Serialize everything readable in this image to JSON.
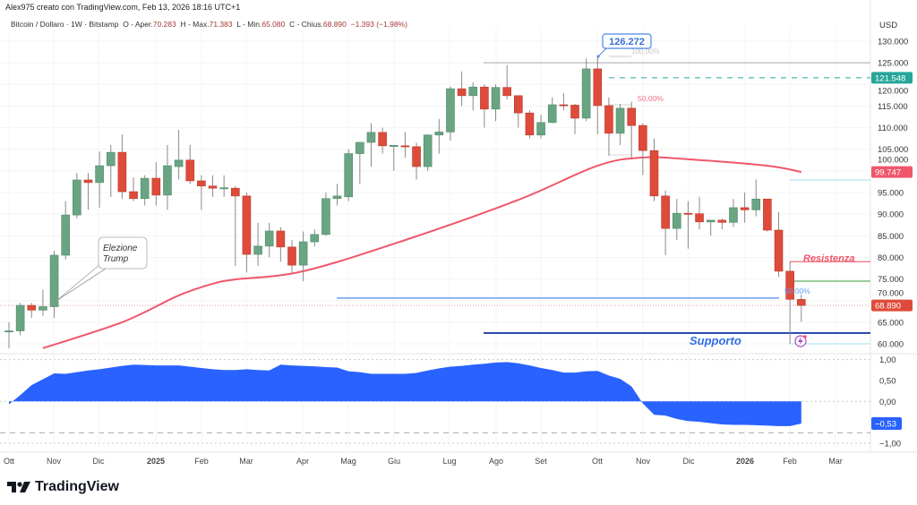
{
  "header": {
    "author_line": "Alex975 creato con TradingView.com, Feb 13, 2026 18:16 UTC+1",
    "symbol": "Bitcoin / Dollaro · 1W · Bitstamp",
    "open_label": "O - Aper.",
    "open": "70.283",
    "high_label": "H - Max.",
    "high": "71.383",
    "low_label": "L - Min.",
    "low": "65.080",
    "close_label": "C - Chius.",
    "close": "68.890",
    "change": "−1.393 (−1,98%)"
  },
  "price_axis": {
    "currency": "USD",
    "ticks": [
      "130.000",
      "125.000",
      "120.000",
      "115.000",
      "110.000",
      "105.000",
      "100.000",
      "95.000",
      "90.000",
      "85.000",
      "80.000",
      "75.000",
      "70.000",
      "65.000",
      "60.000"
    ],
    "badges": {
      "green_level": "121.548",
      "ma": "99.747",
      "last": "68.890"
    }
  },
  "indicator_axis": {
    "ticks": [
      "1,00",
      "0,50",
      "0,00",
      "−1,00"
    ],
    "last": "−0,53"
  },
  "x_axis": {
    "labels": [
      "Ott",
      "Nov",
      "Dic",
      "2025",
      "Feb",
      "Mar",
      "Apr",
      "Mag",
      "Giu",
      "Lug",
      "Ago",
      "Set",
      "Ott",
      "Nov",
      "Dic",
      "2026",
      "Feb",
      "Mar"
    ],
    "bold": [
      "2025",
      "2026"
    ]
  },
  "annotations": {
    "ath_callout": "126.272",
    "fib_100": "100,00%",
    "fib_50_red": "50,00%",
    "fib_50_blue": "50,00%",
    "resistance": "Resistenza",
    "support": "Supporto",
    "election_note": [
      "Elezione",
      "Trump"
    ]
  },
  "colors": {
    "up": "#6aa583",
    "down": "#df4b3b",
    "ma": "#f0566a",
    "indicator": "#2962ff",
    "support": "#1e3fa8",
    "resistance": "#f06b7a"
  },
  "brand": "TradingView",
  "chart_data": {
    "type": "candlestick",
    "interval": "1W",
    "ohlc": [
      [
        63,
        65,
        59,
        63
      ],
      [
        63,
        69.5,
        62,
        68.9
      ],
      [
        68.9,
        69.5,
        66,
        67.8
      ],
      [
        67.8,
        72.5,
        66.5,
        68.6
      ],
      [
        68.6,
        81.5,
        66,
        80.5
      ],
      [
        80.5,
        93,
        79.5,
        89.8
      ],
      [
        89.8,
        99.5,
        89,
        97.9
      ],
      [
        97.9,
        99.5,
        91,
        97.3
      ],
      [
        97.3,
        104.5,
        91.5,
        101.2
      ],
      [
        101.2,
        106,
        94,
        104.3
      ],
      [
        104.3,
        108.4,
        93.5,
        95.2
      ],
      [
        95.2,
        98.5,
        93,
        93.6
      ],
      [
        93.6,
        99,
        92,
        98.3
      ],
      [
        98.3,
        102,
        92,
        94.4
      ],
      [
        94.4,
        106,
        91,
        101.2
      ],
      [
        101,
        109.5,
        98,
        102.5
      ],
      [
        102.5,
        106,
        97,
        97.7
      ],
      [
        97.7,
        99,
        91,
        96.5
      ],
      [
        96.5,
        99,
        94,
        96
      ],
      [
        96,
        99,
        94,
        96.1
      ],
      [
        96,
        96.5,
        78,
        94.2
      ],
      [
        94.2,
        95,
        76.5,
        80.7
      ],
      [
        80.7,
        88,
        78,
        82.6
      ],
      [
        82.6,
        88,
        80,
        86.1
      ],
      [
        86.1,
        87,
        79,
        82.4
      ],
      [
        82.4,
        84,
        76.5,
        78.2
      ],
      [
        78.2,
        86,
        74.5,
        83.6
      ],
      [
        83.6,
        86.5,
        82.5,
        85.3
      ],
      [
        85.3,
        95,
        85,
        93.6
      ],
      [
        93.6,
        97,
        92,
        94.2
      ],
      [
        94,
        105,
        93,
        104
      ],
      [
        104,
        106.7,
        97,
        106.6
      ],
      [
        106.6,
        111,
        101,
        108.9
      ],
      [
        108.9,
        110,
        104,
        105.8
      ],
      [
        105.8,
        106,
        100,
        105.9
      ],
      [
        105.8,
        109,
        103,
        105.6
      ],
      [
        105.6,
        106.5,
        98,
        101
      ],
      [
        101,
        108.5,
        100,
        108.3
      ],
      [
        108.3,
        112,
        104,
        109
      ],
      [
        109,
        119.5,
        107,
        119
      ],
      [
        119,
        123,
        115,
        117.4
      ],
      [
        117.4,
        120.5,
        114,
        119.4
      ],
      [
        119.4,
        120,
        110,
        114.3
      ],
      [
        114.3,
        120,
        111.5,
        119.3
      ],
      [
        119.3,
        124.5,
        116.5,
        117.4
      ],
      [
        117.4,
        117.5,
        110,
        113.4
      ],
      [
        113.4,
        114,
        107.5,
        108.3
      ],
      [
        108.3,
        113,
        107.5,
        111.2
      ],
      [
        111.2,
        117,
        111,
        115.3
      ],
      [
        115.3,
        118,
        114,
        115.2
      ],
      [
        115.2,
        115.5,
        108.5,
        112.2
      ],
      [
        112.2,
        126,
        111.5,
        123.6
      ],
      [
        123.6,
        126.272,
        108.5,
        115.1
      ],
      [
        115.1,
        117,
        103.5,
        108.7
      ],
      [
        108.7,
        115.5,
        106,
        114.5
      ],
      [
        114.5,
        116,
        103,
        110.5
      ],
      [
        110.5,
        111,
        99,
        104.7
      ],
      [
        104.7,
        107.5,
        93,
        94.2
      ],
      [
        94.2,
        95.5,
        80.5,
        86.7
      ],
      [
        86.7,
        93.5,
        84,
        90.2
      ],
      [
        90.2,
        93,
        82,
        90.1
      ],
      [
        90.1,
        94,
        86.5,
        88.2
      ],
      [
        88.2,
        88.7,
        85,
        88.6
      ],
      [
        88.6,
        89,
        86.5,
        88.1
      ],
      [
        88.1,
        93.5,
        87,
        91.5
      ],
      [
        91.5,
        95,
        88,
        91
      ],
      [
        91,
        98,
        89.5,
        93.5
      ],
      [
        93.5,
        93.5,
        86,
        86.3
      ],
      [
        86.3,
        90.5,
        75.5,
        76.8
      ],
      [
        76.8,
        79,
        60,
        70.3
      ],
      [
        70.283,
        71.383,
        65.08,
        68.89
      ]
    ],
    "moving_average": [
      [
        3,
        59
      ],
      [
        10,
        65
      ],
      [
        15,
        71.2
      ],
      [
        18,
        73.9
      ],
      [
        20,
        74.9
      ],
      [
        26,
        76.8
      ],
      [
        35,
        84
      ],
      [
        45,
        93.3
      ],
      [
        52,
        101.2
      ],
      [
        56,
        103.1
      ],
      [
        60,
        102.7
      ],
      [
        67,
        101.2
      ],
      [
        70,
        99.747
      ]
    ],
    "oscillator": [
      -0.07,
      0.15,
      0.39,
      0.53,
      0.67,
      0.66,
      0.7,
      0.74,
      0.77,
      0.81,
      0.85,
      0.88,
      0.87,
      0.86,
      0.86,
      0.86,
      0.83,
      0.8,
      0.77,
      0.75,
      0.75,
      0.77,
      0.75,
      0.74,
      0.88,
      0.86,
      0.85,
      0.84,
      0.82,
      0.81,
      0.72,
      0.7,
      0.66,
      0.66,
      0.66,
      0.66,
      0.68,
      0.74,
      0.79,
      0.83,
      0.85,
      0.88,
      0.9,
      0.93,
      0.94,
      0.91,
      0.86,
      0.8,
      0.75,
      0.69,
      0.69,
      0.72,
      0.73,
      0.62,
      0.54,
      0.36,
      -0.05,
      -0.32,
      -0.34,
      -0.42,
      -0.47,
      -0.49,
      -0.52,
      -0.55,
      -0.56,
      -0.56,
      -0.57,
      -0.58,
      -0.59,
      -0.59,
      -0.53
    ],
    "levels": {
      "ath": 126.272,
      "top_line": 125,
      "green_dashed": 121.548,
      "resistance": 79,
      "green_line": 74.5,
      "fib_50": 70.6,
      "support": 62.5
    },
    "ylim": [
      60,
      130
    ],
    "oscillator_ylim": [
      -1,
      1
    ]
  }
}
